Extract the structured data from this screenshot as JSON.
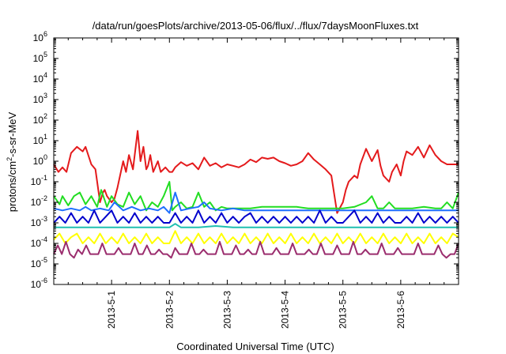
{
  "chart_data": {
    "type": "line",
    "title": "/data/run/goesPlots/archive/2013-05-06/flux/../flux/7daysMoonFluxes.txt",
    "xlabel": "Coordinated Universal Time (UTC)",
    "ylabel_parts": {
      "base": "protons/cm",
      "sup": "2",
      "rest": "-s-sr-MeV"
    },
    "yscale": "log",
    "ylim": [
      1e-06,
      1000000.0
    ],
    "y_ticks": [
      {
        "exp": -6,
        "base": "10",
        "power": "-6"
      },
      {
        "exp": -5,
        "base": "10",
        "power": "-5"
      },
      {
        "exp": -4,
        "base": "10",
        "power": "-4"
      },
      {
        "exp": -3,
        "base": "10",
        "power": "-3"
      },
      {
        "exp": -2,
        "base": "10",
        "power": "-2"
      },
      {
        "exp": -1,
        "base": "10",
        "power": "-1"
      },
      {
        "exp": 0,
        "base": "10",
        "power": "0"
      },
      {
        "exp": 1,
        "base": "10",
        "power": "1"
      },
      {
        "exp": 2,
        "base": "10",
        "power": "2"
      },
      {
        "exp": 3,
        "base": "10",
        "power": "3"
      },
      {
        "exp": 4,
        "base": "10",
        "power": "4"
      },
      {
        "exp": 5,
        "base": "10",
        "power": "5"
      },
      {
        "exp": 6,
        "base": "10",
        "power": "6"
      }
    ],
    "x_range_days": [
      0,
      7
    ],
    "x_ticks": [
      {
        "label": "2013-5-1",
        "day": 1
      },
      {
        "label": "2013-5-2",
        "day": 2
      },
      {
        "label": "2013-5-3",
        "day": 3
      },
      {
        "label": "2013-5-4",
        "day": 4
      },
      {
        "label": "2013-5-5",
        "day": 5
      },
      {
        "label": "2013-5-6",
        "day": 6
      }
    ],
    "grid": false,
    "legend": "none",
    "series": [
      {
        "color": "#e41a1c",
        "x": [
          0.0,
          0.08,
          0.15,
          0.22,
          0.3,
          0.4,
          0.5,
          0.55,
          0.65,
          0.72,
          0.8,
          0.85,
          0.88,
          0.92,
          1.0,
          1.05,
          1.1,
          1.2,
          1.25,
          1.3,
          1.37,
          1.45,
          1.5,
          1.55,
          1.6,
          1.63,
          1.67,
          1.72,
          1.8,
          1.85,
          1.93,
          2.0,
          2.05,
          2.1,
          2.2,
          2.3,
          2.4,
          2.5,
          2.6,
          2.7,
          2.8,
          2.9,
          3.0,
          3.1,
          3.2,
          3.3,
          3.4,
          3.5,
          3.6,
          3.7,
          3.8,
          3.9,
          4.0,
          4.1,
          4.2,
          4.3,
          4.4,
          4.5,
          4.6,
          4.7,
          4.8,
          4.9,
          5.0,
          5.05,
          5.1,
          5.2,
          5.25,
          5.3,
          5.4,
          5.5,
          5.6,
          5.65,
          5.7,
          5.8,
          5.85,
          5.93,
          6.0,
          6.05,
          6.1,
          6.2,
          6.3,
          6.4,
          6.5,
          6.6,
          6.7,
          6.8,
          6.9,
          7.0
        ],
        "y": [
          0.7,
          0.3,
          0.5,
          0.3,
          2.5,
          5,
          3,
          5,
          0.7,
          0.4,
          0.01,
          0.03,
          0.04,
          0.02,
          0.01,
          0.015,
          0.05,
          1,
          0.3,
          2,
          0.4,
          30,
          1,
          5,
          0.4,
          0.6,
          2,
          0.3,
          1,
          0.3,
          0.5,
          0.3,
          0.3,
          0.5,
          0.9,
          0.6,
          0.8,
          0.4,
          1.5,
          0.6,
          0.8,
          0.5,
          0.7,
          0.6,
          0.5,
          0.7,
          1.2,
          0.9,
          1.5,
          1.3,
          1.5,
          1,
          0.8,
          0.6,
          0.7,
          1,
          2.5,
          1.2,
          0.7,
          0.4,
          0.2,
          0.003,
          0.01,
          0.04,
          0.1,
          0.2,
          0.15,
          0.7,
          4,
          1,
          3.5,
          0.6,
          0.2,
          0.1,
          0.3,
          0.7,
          0.2,
          1,
          3,
          2,
          5,
          1.5,
          6,
          2,
          1,
          0.7,
          0.7,
          0.7
        ]
      },
      {
        "color": "#22dd22",
        "x": [
          0.0,
          0.1,
          0.15,
          0.25,
          0.35,
          0.45,
          0.55,
          0.65,
          0.75,
          0.82,
          0.92,
          1.0,
          1.1,
          1.2,
          1.3,
          1.4,
          1.5,
          1.6,
          1.7,
          1.8,
          1.9,
          2.0,
          2.05,
          2.1,
          2.2,
          2.3,
          2.4,
          2.5,
          2.6,
          2.7,
          2.8,
          2.9,
          3.0,
          3.2,
          3.4,
          3.6,
          3.8,
          4.0,
          4.2,
          4.4,
          4.6,
          4.8,
          5.0,
          5.2,
          5.4,
          5.5,
          5.6,
          5.7,
          5.8,
          5.9,
          6.0,
          6.2,
          6.4,
          6.6,
          6.7,
          6.8,
          6.9,
          7.0
        ],
        "y": [
          0.02,
          0.008,
          0.02,
          0.007,
          0.02,
          0.03,
          0.008,
          0.02,
          0.006,
          0.04,
          0.006,
          0.02,
          0.008,
          0.006,
          0.03,
          0.008,
          0.02,
          0.004,
          0.01,
          0.006,
          0.02,
          0.1,
          0.004,
          0.006,
          0.01,
          0.005,
          0.006,
          0.03,
          0.006,
          0.01,
          0.004,
          0.006,
          0.005,
          0.005,
          0.005,
          0.006,
          0.006,
          0.006,
          0.006,
          0.005,
          0.005,
          0.005,
          0.005,
          0.006,
          0.01,
          0.02,
          0.005,
          0.005,
          0.01,
          0.005,
          0.005,
          0.005,
          0.006,
          0.005,
          0.005,
          0.01,
          0.005,
          0.03
        ]
      },
      {
        "color": "#1e6fff",
        "x": [
          0.0,
          0.15,
          0.3,
          0.45,
          0.55,
          0.65,
          0.8,
          0.95,
          1.05,
          1.2,
          1.35,
          1.5,
          1.65,
          1.8,
          1.9,
          2.0,
          2.1,
          2.2,
          2.35,
          2.5,
          2.6,
          2.7,
          2.9,
          3.1,
          3.3,
          3.5,
          3.7,
          3.9,
          4.1,
          4.3,
          4.5,
          4.7,
          4.9,
          5.1,
          5.3,
          5.5,
          5.7,
          5.9,
          6.1,
          6.3,
          6.5,
          6.7,
          6.9,
          7.0
        ],
        "y": [
          0.005,
          0.004,
          0.005,
          0.004,
          0.006,
          0.004,
          0.005,
          0.004,
          0.01,
          0.004,
          0.006,
          0.004,
          0.005,
          0.004,
          0.006,
          0.003,
          0.03,
          0.004,
          0.005,
          0.006,
          0.01,
          0.005,
          0.004,
          0.005,
          0.004,
          0.004,
          0.004,
          0.004,
          0.004,
          0.004,
          0.004,
          0.004,
          0.004,
          0.004,
          0.004,
          0.004,
          0.004,
          0.004,
          0.004,
          0.004,
          0.004,
          0.004,
          0.004,
          0.004
        ]
      },
      {
        "color": "#0000cc",
        "x": [
          0.0,
          0.1,
          0.2,
          0.3,
          0.4,
          0.5,
          0.6,
          0.7,
          0.8,
          0.9,
          1.0,
          1.1,
          1.2,
          1.3,
          1.4,
          1.5,
          1.6,
          1.7,
          1.8,
          1.9,
          2.0,
          2.1,
          2.2,
          2.3,
          2.4,
          2.5,
          2.6,
          2.7,
          2.8,
          2.9,
          3.0,
          3.1,
          3.2,
          3.3,
          3.4,
          3.5,
          3.6,
          3.7,
          3.8,
          3.9,
          4.0,
          4.1,
          4.2,
          4.3,
          4.4,
          4.5,
          4.6,
          4.7,
          4.8,
          4.9,
          5.0,
          5.1,
          5.2,
          5.3,
          5.4,
          5.5,
          5.6,
          5.7,
          5.8,
          5.9,
          6.0,
          6.1,
          6.2,
          6.3,
          6.4,
          6.5,
          6.6,
          6.7,
          6.8,
          6.9,
          7.0
        ],
        "y": [
          0.001,
          0.002,
          0.001,
          0.003,
          0.001,
          0.002,
          0.001,
          0.004,
          0.001,
          0.002,
          0.004,
          0.001,
          0.002,
          0.001,
          0.003,
          0.001,
          0.002,
          0.001,
          0.002,
          0.001,
          0.001,
          0.003,
          0.001,
          0.002,
          0.001,
          0.004,
          0.001,
          0.002,
          0.001,
          0.003,
          0.001,
          0.002,
          0.001,
          0.002,
          0.003,
          0.001,
          0.002,
          0.001,
          0.002,
          0.001,
          0.002,
          0.001,
          0.002,
          0.001,
          0.002,
          0.001,
          0.004,
          0.001,
          0.002,
          0.001,
          0.001,
          0.002,
          0.004,
          0.001,
          0.002,
          0.001,
          0.003,
          0.001,
          0.002,
          0.001,
          0.001,
          0.002,
          0.001,
          0.003,
          0.001,
          0.002,
          0.001,
          0.002,
          0.001,
          0.002,
          0.001
        ]
      },
      {
        "color": "#20c0b0",
        "x": [
          0.0,
          0.3,
          0.6,
          0.9,
          1.2,
          1.5,
          1.8,
          2.0,
          2.1,
          2.2,
          2.5,
          2.8,
          3.1,
          3.4,
          3.7,
          4.0,
          4.3,
          4.6,
          4.9,
          5.2,
          5.5,
          5.8,
          6.1,
          6.4,
          6.7,
          7.0
        ],
        "y": [
          0.0006,
          0.0006,
          0.0006,
          0.0006,
          0.0006,
          0.0006,
          0.0006,
          0.0006,
          0.0009,
          0.0006,
          0.0006,
          0.0007,
          0.0006,
          0.0006,
          0.0006,
          0.0006,
          0.0006,
          0.0006,
          0.0006,
          0.0006,
          0.0006,
          0.0006,
          0.0006,
          0.0006,
          0.0006,
          0.0006
        ]
      },
      {
        "color": "#ffff00",
        "x": [
          0.0,
          0.1,
          0.2,
          0.3,
          0.4,
          0.5,
          0.6,
          0.7,
          0.8,
          0.9,
          1.0,
          1.1,
          1.2,
          1.3,
          1.4,
          1.5,
          1.6,
          1.7,
          1.8,
          1.9,
          2.0,
          2.1,
          2.2,
          2.3,
          2.4,
          2.5,
          2.6,
          2.7,
          2.8,
          2.9,
          3.0,
          3.1,
          3.2,
          3.3,
          3.4,
          3.5,
          3.6,
          3.7,
          3.8,
          3.9,
          4.0,
          4.1,
          4.2,
          4.3,
          4.4,
          4.5,
          4.6,
          4.7,
          4.8,
          4.9,
          5.0,
          5.1,
          5.2,
          5.3,
          5.4,
          5.5,
          5.6,
          5.7,
          5.8,
          5.9,
          6.0,
          6.1,
          6.2,
          6.3,
          6.4,
          6.5,
          6.6,
          6.7,
          6.8,
          6.9,
          7.0
        ],
        "y": [
          0.00015,
          0.0003,
          0.0001,
          0.0002,
          0.0003,
          0.0001,
          0.0002,
          0.0001,
          0.0003,
          0.0001,
          0.0002,
          0.0001,
          0.0003,
          0.0001,
          0.0002,
          0.0001,
          0.0003,
          0.0001,
          0.0002,
          0.0001,
          0.0001,
          0.0004,
          0.0001,
          0.0002,
          0.0001,
          0.0003,
          0.0001,
          0.0002,
          0.0001,
          0.0003,
          0.0001,
          0.0002,
          0.0001,
          0.0003,
          0.0001,
          0.0002,
          0.0001,
          0.0003,
          0.0001,
          0.0002,
          0.0001,
          0.0003,
          0.0001,
          0.0002,
          0.0001,
          0.0003,
          0.0001,
          0.0002,
          0.0001,
          0.0003,
          0.0001,
          0.0002,
          0.0001,
          0.0003,
          0.0001,
          0.0002,
          0.0001,
          0.0003,
          0.0001,
          0.0002,
          0.0001,
          0.0003,
          0.0001,
          0.0002,
          0.0001,
          0.0003,
          0.0001,
          0.0002,
          0.0001,
          0.0003,
          0.0002
        ]
      },
      {
        "color": "#9b2d6e",
        "x": [
          0.0,
          0.07,
          0.14,
          0.21,
          0.28,
          0.35,
          0.42,
          0.49,
          0.56,
          0.63,
          0.7,
          0.77,
          0.84,
          0.91,
          0.98,
          1.05,
          1.12,
          1.19,
          1.26,
          1.33,
          1.4,
          1.47,
          1.54,
          1.61,
          1.68,
          1.75,
          1.82,
          1.89,
          1.96,
          2.03,
          2.1,
          2.17,
          2.24,
          2.31,
          2.38,
          2.45,
          2.52,
          2.59,
          2.66,
          2.73,
          2.8,
          2.87,
          2.94,
          3.01,
          3.08,
          3.15,
          3.22,
          3.29,
          3.36,
          3.43,
          3.5,
          3.57,
          3.64,
          3.71,
          3.78,
          3.85,
          3.92,
          3.99,
          4.06,
          4.13,
          4.2,
          4.27,
          4.34,
          4.41,
          4.48,
          4.55,
          4.62,
          4.69,
          4.76,
          4.83,
          4.9,
          4.97,
          5.04,
          5.11,
          5.18,
          5.25,
          5.32,
          5.39,
          5.46,
          5.53,
          5.6,
          5.67,
          5.74,
          5.81,
          5.88,
          5.95,
          6.02,
          6.09,
          6.16,
          6.23,
          6.3,
          6.37,
          6.44,
          6.51,
          6.58,
          6.65,
          6.72,
          6.79,
          6.86,
          6.93,
          7.0
        ],
        "y": [
          3e-05,
          8e-05,
          3e-05,
          0.00012,
          3e-05,
          2e-05,
          5e-05,
          3e-05,
          8e-05,
          3e-05,
          3e-05,
          3e-05,
          0.0001,
          3e-05,
          3e-05,
          3e-05,
          6e-05,
          3e-05,
          3e-05,
          3e-05,
          0.0001,
          3e-05,
          3e-05,
          8e-05,
          3e-05,
          3e-05,
          5e-05,
          3e-05,
          3e-05,
          2e-05,
          6e-05,
          3e-05,
          3e-05,
          3e-05,
          0.0001,
          3e-05,
          3e-05,
          5e-05,
          3e-05,
          3e-05,
          3e-05,
          0.00012,
          3e-05,
          3e-05,
          3e-05,
          8e-05,
          3e-05,
          3e-05,
          5e-05,
          3e-05,
          3e-05,
          0.00012,
          3e-05,
          3e-05,
          3e-05,
          6e-05,
          3e-05,
          3e-05,
          3e-05,
          0.0001,
          3e-05,
          3e-05,
          3e-05,
          5e-05,
          3e-05,
          3e-05,
          0.0001,
          3e-05,
          3e-05,
          3e-05,
          8e-05,
          3e-05,
          3e-05,
          3e-05,
          0.00012,
          3e-05,
          3e-05,
          5e-05,
          3e-05,
          3e-05,
          3e-05,
          0.0001,
          3e-05,
          3e-05,
          3e-05,
          6e-05,
          3e-05,
          3e-05,
          3e-05,
          3e-05,
          0.0001,
          3e-05,
          3e-05,
          3e-05,
          3e-05,
          8e-05,
          3e-05,
          2e-05,
          3e-05,
          3e-05,
          0.0001
        ]
      }
    ]
  }
}
